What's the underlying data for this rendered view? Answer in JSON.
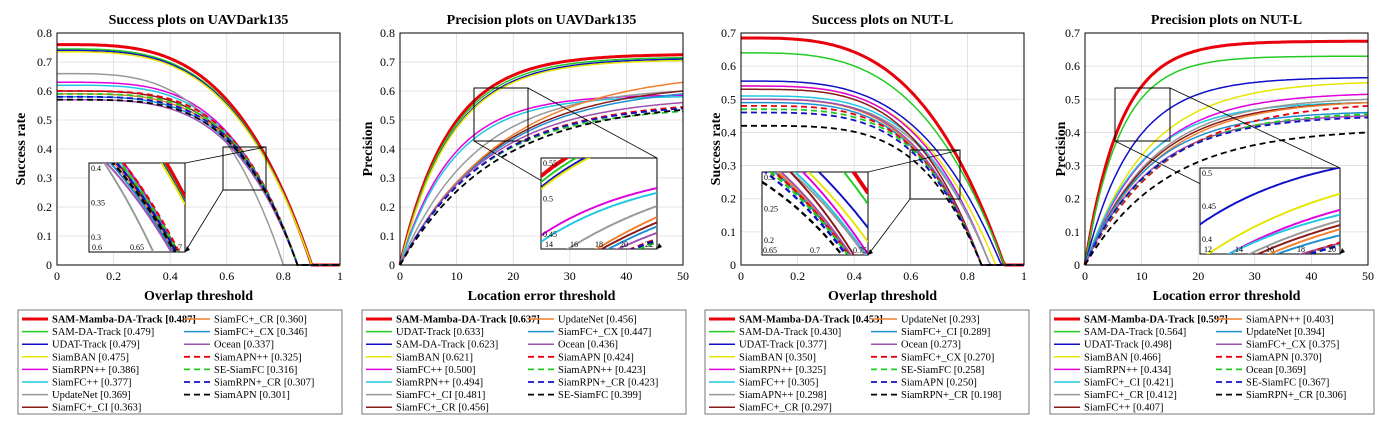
{
  "chart_data": [
    {
      "type": "line",
      "title": "Success plots on UAVDark135",
      "xlabel": "Overlap threshold",
      "ylabel": "Success rate",
      "xlim": [
        0,
        1
      ],
      "ylim": [
        0,
        0.8
      ],
      "xticks": [
        "0",
        "0.2",
        "0.4",
        "0.6",
        "0.8",
        "1"
      ],
      "yticks": [
        "0",
        "0.1",
        "0.2",
        "0.3",
        "0.4",
        "0.5",
        "0.6",
        "0.7",
        "0.8"
      ],
      "zoom_xticks": [
        "0.6",
        "0.65",
        "0.7"
      ],
      "zoom_yticks": [
        "0.3",
        "0.35",
        "0.4"
      ],
      "zoom_xrange": [
        0.58,
        0.75
      ],
      "zoom_yrange": [
        0.26,
        0.41
      ],
      "series": [
        {
          "name": "SAM-Mamba-DA-Track [0.487]",
          "color": "#e8000b",
          "dash": "",
          "width": 3,
          "start": 0.76,
          "mid": 0.5,
          "end": 0.9,
          "shape": 0.55
        },
        {
          "name": "SAM-DA-Track [0.479]",
          "color": "#22cc22",
          "dash": "",
          "width": 1.5,
          "start": 0.745,
          "mid": 0.5,
          "end": 0.9,
          "shape": 0.55
        },
        {
          "name": "UDAT-Track [0.479]",
          "color": "#1010c8",
          "dash": "",
          "width": 1.5,
          "start": 0.74,
          "mid": 0.49,
          "end": 0.9,
          "shape": 0.55
        },
        {
          "name": "SiamBAN [0.475]",
          "color": "#e6e600",
          "dash": "",
          "width": 1.5,
          "start": 0.735,
          "mid": 0.48,
          "end": 0.9,
          "shape": 0.55
        },
        {
          "name": "SiamRPN++ [0.386]",
          "color": "#e000e0",
          "dash": "",
          "width": 1.5,
          "start": 0.63,
          "mid": 0.4,
          "end": 0.85,
          "shape": 0.7
        },
        {
          "name": "SiamFC++ [0.377]",
          "color": "#22c8e0",
          "dash": "",
          "width": 1.5,
          "start": 0.62,
          "mid": 0.39,
          "end": 0.85,
          "shape": 0.7
        },
        {
          "name": "UpdateNet [0.369]",
          "color": "#999999",
          "dash": "",
          "width": 1.5,
          "start": 0.66,
          "mid": 0.36,
          "end": 0.8,
          "shape": 0.6
        },
        {
          "name": "SiamFC+_CI [0.363]",
          "color": "#8b1a1a",
          "dash": "",
          "width": 1.5,
          "start": 0.6,
          "mid": 0.38,
          "end": 0.85,
          "shape": 0.75
        },
        {
          "name": "SiamFC+_CR [0.360]",
          "color": "#f08030",
          "dash": "",
          "width": 1.5,
          "start": 0.59,
          "mid": 0.38,
          "end": 0.85,
          "shape": 0.75
        },
        {
          "name": "SiamFC+_CX [0.346]",
          "color": "#2090d0",
          "dash": "",
          "width": 1.5,
          "start": 0.58,
          "mid": 0.37,
          "end": 0.85,
          "shape": 0.75
        },
        {
          "name": "Ocean [0.337]",
          "color": "#a050b0",
          "dash": "",
          "width": 1.5,
          "start": 0.57,
          "mid": 0.36,
          "end": 0.85,
          "shape": 0.75
        },
        {
          "name": "SiamAPN++ [0.325]",
          "color": "#e8000b",
          "dash": "6,4",
          "width": 1.8,
          "start": 0.6,
          "mid": 0.33,
          "end": 0.85,
          "shape": 0.85
        },
        {
          "name": "SE-SiamFC [0.316]",
          "color": "#22cc22",
          "dash": "6,4",
          "width": 1.8,
          "start": 0.59,
          "mid": 0.32,
          "end": 0.85,
          "shape": 0.85
        },
        {
          "name": "SiamRPN+_CR [0.307]",
          "color": "#1010c8",
          "dash": "6,4",
          "width": 1.8,
          "start": 0.58,
          "mid": 0.31,
          "end": 0.85,
          "shape": 0.85
        },
        {
          "name": "SiamAPN [0.301]",
          "color": "#000000",
          "dash": "6,4",
          "width": 1.8,
          "start": 0.57,
          "mid": 0.3,
          "end": 0.85,
          "shape": 0.85
        }
      ]
    },
    {
      "type": "line",
      "title": "Precision plots on UAVDark135",
      "xlabel": "Location error threshold",
      "ylabel": "Precision",
      "xlim": [
        0,
        50
      ],
      "ylim": [
        0,
        0.8
      ],
      "xticks": [
        "0",
        "10",
        "20",
        "30",
        "40",
        "50"
      ],
      "yticks": [
        "0",
        "0.1",
        "0.2",
        "0.3",
        "0.4",
        "0.5",
        "0.6",
        "0.7",
        "0.8"
      ],
      "zoom_xticks": [
        "14",
        "16",
        "18",
        "20",
        "22"
      ],
      "zoom_yticks": [
        "0.45",
        "0.5",
        "0.55"
      ],
      "zoom_xrange": [
        13,
        23
      ],
      "zoom_yrange": [
        0.42,
        0.6
      ],
      "series": [
        {
          "name": "SAM-Mamba-DA-Track [0.637]",
          "color": "#e8000b",
          "dash": "",
          "width": 3,
          "end": 0.725,
          "k": 0.115
        },
        {
          "name": "UDAT-Track [0.633]",
          "color": "#22cc22",
          "dash": "",
          "width": 1.5,
          "end": 0.715,
          "k": 0.113
        },
        {
          "name": "SAM-DA-Track [0.623]",
          "color": "#1010c8",
          "dash": "",
          "width": 1.5,
          "end": 0.71,
          "k": 0.11
        },
        {
          "name": "SiamBAN [0.621]",
          "color": "#e6e600",
          "dash": "",
          "width": 1.5,
          "end": 0.705,
          "k": 0.11
        },
        {
          "name": "SiamFC++ [0.500]",
          "color": "#e000e0",
          "dash": "",
          "width": 1.5,
          "end": 0.585,
          "k": 0.11
        },
        {
          "name": "SiamRPN++ [0.494]",
          "color": "#22c8e0",
          "dash": "",
          "width": 1.5,
          "end": 0.58,
          "k": 0.105
        },
        {
          "name": "SiamFC+_CI [0.481]",
          "color": "#999999",
          "dash": "",
          "width": 1.5,
          "end": 0.6,
          "k": 0.075
        },
        {
          "name": "SiamFC+_CR [0.456]",
          "color": "#8b1a1a",
          "dash": "",
          "width": 1.5,
          "end": 0.6,
          "k": 0.06
        },
        {
          "name": "UpdateNet [0.456]",
          "color": "#f08030",
          "dash": "",
          "width": 1.5,
          "end": 0.63,
          "k": 0.055
        },
        {
          "name": "SiamFC+_CX [0.447]",
          "color": "#2090d0",
          "dash": "",
          "width": 1.5,
          "end": 0.59,
          "k": 0.06
        },
        {
          "name": "Ocean [0.436]",
          "color": "#a050b0",
          "dash": "",
          "width": 1.5,
          "end": 0.56,
          "k": 0.065
        },
        {
          "name": "SiamAPN [0.424]",
          "color": "#e8000b",
          "dash": "6,4",
          "width": 1.8,
          "end": 0.545,
          "k": 0.065
        },
        {
          "name": "SiamAPN++ [0.423]",
          "color": "#22cc22",
          "dash": "6,4",
          "width": 1.8,
          "end": 0.53,
          "k": 0.068
        },
        {
          "name": "SiamRPN+_CR [0.423]",
          "color": "#1010c8",
          "dash": "6,4",
          "width": 1.8,
          "end": 0.54,
          "k": 0.066
        },
        {
          "name": "SE-SiamFC [0.399]",
          "color": "#000000",
          "dash": "6,4",
          "width": 1.8,
          "end": 0.535,
          "k": 0.06
        }
      ]
    },
    {
      "type": "line",
      "title": "Success plots on NUT-L",
      "xlabel": "Overlap threshold",
      "ylabel": "Success rate",
      "xlim": [
        0,
        1
      ],
      "ylim": [
        0,
        0.7
      ],
      "xticks": [
        "0",
        "0.2",
        "0.4",
        "0.6",
        "0.8",
        "1"
      ],
      "yticks": [
        "0",
        "0.1",
        "0.2",
        "0.3",
        "0.4",
        "0.5",
        "0.6",
        "0.7"
      ],
      "zoom_xticks": [
        "0.65",
        "0.7",
        "0.75"
      ],
      "zoom_yticks": [
        "0.2",
        "0.25",
        "0.3"
      ],
      "zoom_xrange": [
        0.6,
        0.78
      ],
      "zoom_yrange": [
        0.19,
        0.34
      ],
      "series": [
        {
          "name": "SAM-Mamba-DA-Track [0.453]",
          "color": "#e8000b",
          "dash": "",
          "width": 3,
          "start": 0.685,
          "mid": 0.45,
          "end": 0.93,
          "shape": 0.5
        },
        {
          "name": "SAM-DA-Track [0.430]",
          "color": "#22cc22",
          "dash": "",
          "width": 1.5,
          "start": 0.64,
          "mid": 0.43,
          "end": 0.93,
          "shape": 0.5
        },
        {
          "name": "UDAT-Track [0.377]",
          "color": "#1010c8",
          "dash": "",
          "width": 1.5,
          "start": 0.555,
          "mid": 0.38,
          "end": 0.92,
          "shape": 0.55
        },
        {
          "name": "SiamBAN [0.350]",
          "color": "#e6e600",
          "dash": "",
          "width": 1.5,
          "start": 0.54,
          "mid": 0.35,
          "end": 0.9,
          "shape": 0.6
        },
        {
          "name": "SiamRPN++ [0.325]",
          "color": "#e000e0",
          "dash": "",
          "width": 1.5,
          "start": 0.54,
          "mid": 0.32,
          "end": 0.88,
          "shape": 0.65
        },
        {
          "name": "SiamFC++ [0.305]",
          "color": "#22c8e0",
          "dash": "",
          "width": 1.5,
          "start": 0.51,
          "mid": 0.3,
          "end": 0.88,
          "shape": 0.7
        },
        {
          "name": "SiamAPN++ [0.298]",
          "color": "#999999",
          "dash": "",
          "width": 1.5,
          "start": 0.5,
          "mid": 0.3,
          "end": 0.88,
          "shape": 0.7
        },
        {
          "name": "SiamFC+_CR [0.297]",
          "color": "#8b1a1a",
          "dash": "",
          "width": 1.5,
          "start": 0.53,
          "mid": 0.3,
          "end": 0.85,
          "shape": 0.72
        },
        {
          "name": "UpdateNet [0.293]",
          "color": "#f08030",
          "dash": "",
          "width": 1.5,
          "start": 0.5,
          "mid": 0.29,
          "end": 0.85,
          "shape": 0.7
        },
        {
          "name": "SiamFC+_CI [0.289]",
          "color": "#2090d0",
          "dash": "",
          "width": 1.5,
          "start": 0.49,
          "mid": 0.29,
          "end": 0.85,
          "shape": 0.72
        },
        {
          "name": "Ocean [0.273]",
          "color": "#a050b0",
          "dash": "",
          "width": 1.5,
          "start": 0.5,
          "mid": 0.27,
          "end": 0.85,
          "shape": 0.75
        },
        {
          "name": "SiamFC+_CX [0.270]",
          "color": "#e8000b",
          "dash": "6,4",
          "width": 1.8,
          "start": 0.48,
          "mid": 0.27,
          "end": 0.85,
          "shape": 0.78
        },
        {
          "name": "SE-SiamFC [0.258]",
          "color": "#22cc22",
          "dash": "6,4",
          "width": 1.8,
          "start": 0.47,
          "mid": 0.26,
          "end": 0.85,
          "shape": 0.8
        },
        {
          "name": "SiamAPN [0.250]",
          "color": "#1010c8",
          "dash": "6,4",
          "width": 1.8,
          "start": 0.46,
          "mid": 0.25,
          "end": 0.85,
          "shape": 0.8
        },
        {
          "name": "SiamRPN+_CR [0.198]",
          "color": "#000000",
          "dash": "6,4",
          "width": 1.8,
          "start": 0.42,
          "mid": 0.2,
          "end": 0.85,
          "shape": 0.9
        }
      ]
    },
    {
      "type": "line",
      "title": "Precision plots on NUT-L",
      "xlabel": "Location error threshold",
      "ylabel": "Precision",
      "xlim": [
        0,
        50
      ],
      "ylim": [
        0,
        0.7
      ],
      "xticks": [
        "0",
        "10",
        "20",
        "30",
        "40",
        "50"
      ],
      "yticks": [
        "0",
        "0.1",
        "0.2",
        "0.3",
        "0.4",
        "0.5",
        "0.6",
        "0.7"
      ],
      "zoom_xticks": [
        "12",
        "14",
        "16",
        "18",
        "20"
      ],
      "zoom_yticks": [
        "0.4",
        "0.45",
        "0.5"
      ],
      "zoom_xrange": [
        11,
        21
      ],
      "zoom_yrange": [
        0.36,
        0.52
      ],
      "series": [
        {
          "name": "SAM-Mamba-DA-Track [0.597]",
          "color": "#e8000b",
          "dash": "",
          "width": 3,
          "end": 0.675,
          "k": 0.16
        },
        {
          "name": "SAM-DA-Track [0.564]",
          "color": "#22cc22",
          "dash": "",
          "width": 1.5,
          "end": 0.63,
          "k": 0.16
        },
        {
          "name": "UDAT-Track [0.498]",
          "color": "#1010c8",
          "dash": "",
          "width": 1.5,
          "end": 0.565,
          "k": 0.12
        },
        {
          "name": "SiamBAN [0.466]",
          "color": "#e6e600",
          "dash": "",
          "width": 1.5,
          "end": 0.55,
          "k": 0.09
        },
        {
          "name": "SiamRPN++ [0.434]",
          "color": "#e000e0",
          "dash": "",
          "width": 1.5,
          "end": 0.515,
          "k": 0.09
        },
        {
          "name": "SiamFC+_CI [0.421]",
          "color": "#22c8e0",
          "dash": "",
          "width": 1.5,
          "end": 0.49,
          "k": 0.1
        },
        {
          "name": "SiamFC+_CR [0.412]",
          "color": "#999999",
          "dash": "",
          "width": 1.5,
          "end": 0.5,
          "k": 0.085
        },
        {
          "name": "SiamFC++ [0.407]",
          "color": "#8b1a1a",
          "dash": "",
          "width": 1.5,
          "end": 0.49,
          "k": 0.085
        },
        {
          "name": "SiamAPN++ [0.403]",
          "color": "#f08030",
          "dash": "",
          "width": 1.5,
          "end": 0.49,
          "k": 0.08
        },
        {
          "name": "UpdateNet [0.394]",
          "color": "#2090d0",
          "dash": "",
          "width": 1.5,
          "end": 0.46,
          "k": 0.09
        },
        {
          "name": "SiamFC+_CX [0.375]",
          "color": "#a050b0",
          "dash": "",
          "width": 1.5,
          "end": 0.45,
          "k": 0.085
        },
        {
          "name": "SiamAPN [0.370]",
          "color": "#e8000b",
          "dash": "6,4",
          "width": 1.8,
          "end": 0.48,
          "k": 0.07
        },
        {
          "name": "Ocean [0.369]",
          "color": "#22cc22",
          "dash": "6,4",
          "width": 1.8,
          "end": 0.455,
          "k": 0.08
        },
        {
          "name": "SE-SiamFC [0.367]",
          "color": "#1010c8",
          "dash": "6,4",
          "width": 1.8,
          "end": 0.445,
          "k": 0.085
        },
        {
          "name": "SiamRPN+_CR [0.306]",
          "color": "#000000",
          "dash": "6,4",
          "width": 1.8,
          "end": 0.4,
          "k": 0.07
        }
      ]
    }
  ]
}
